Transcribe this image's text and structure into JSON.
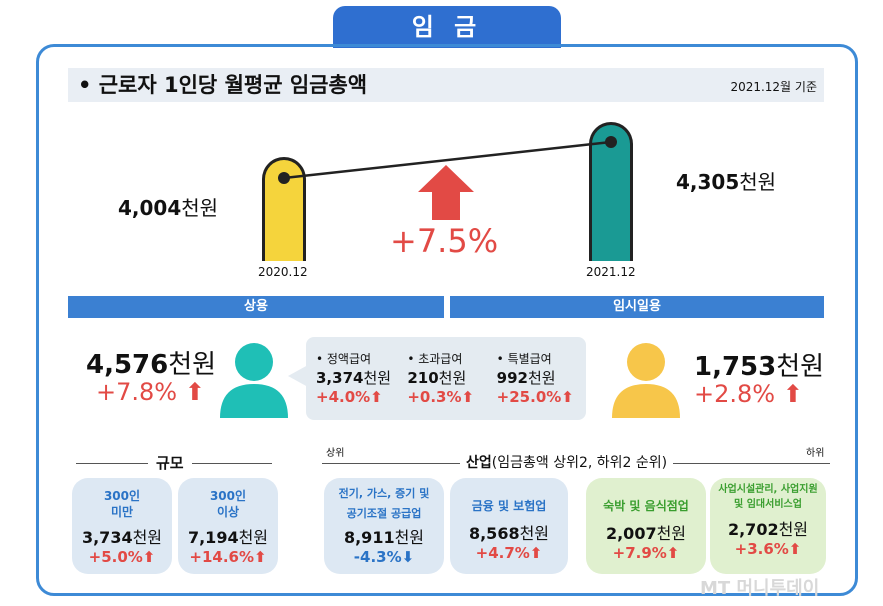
{
  "tab": "임 금",
  "header": {
    "title": "• 근로자 1인당 월평균 임금총액",
    "date": "2021.12월 기준"
  },
  "trend": {
    "left": {
      "value": "4,004",
      "unit": "천원",
      "label": "2020.12"
    },
    "right": {
      "value": "4,305",
      "unit": "천원",
      "label": "2021.12"
    },
    "change": "+7.5%"
  },
  "regular": {
    "title": "상용",
    "value": "4,576",
    "unit": "천원",
    "change": "+7.8%",
    "items": [
      {
        "label": "• 정액급여",
        "value": "3,374",
        "unit": "천원",
        "change": "+4.0%"
      },
      {
        "label": "• 초과급여",
        "value": "210",
        "unit": "천원",
        "change": "+0.3%"
      },
      {
        "label": "• 특별급여",
        "value": "992",
        "unit": "천원",
        "change": "+25.0%"
      }
    ]
  },
  "temp": {
    "title": "임시일용",
    "value": "1,753",
    "unit": "천원",
    "change": "+2.8%"
  },
  "scale": {
    "title": "규모",
    "items": [
      {
        "label": "300인\n미만",
        "value": "3,734",
        "unit": "천원",
        "change": "+5.0%"
      },
      {
        "label": "300인\n이상",
        "value": "7,194",
        "unit": "천원",
        "change": "+14.6%"
      }
    ]
  },
  "industry": {
    "title": "산업",
    "subtitle": "(임금총액 상위2, 하위2 순위)",
    "top": "상위",
    "bottom": "하위",
    "items": [
      {
        "label": "전기, 가스, 증기 및\n공기조절 공급업",
        "value": "8,911",
        "unit": "천원",
        "change": "-4.3%"
      },
      {
        "label": "금융 및 보험업",
        "value": "8,568",
        "unit": "천원",
        "change": "+4.7%"
      },
      {
        "label": "숙박 및 음식점업",
        "value": "2,007",
        "unit": "천원",
        "change": "+7.9%"
      },
      {
        "label": "사업시설관리, 사업지원\n및 임대서비스업",
        "value": "2,702",
        "unit": "천원",
        "change": "+3.6%"
      }
    ]
  },
  "watermark": "MT 머니투데이",
  "colors": {
    "accent": "#2f6fd0",
    "up": "#e24a45",
    "down": "#2a73c6",
    "yellow": "#f5d43c",
    "teal": "#1a9a94"
  }
}
